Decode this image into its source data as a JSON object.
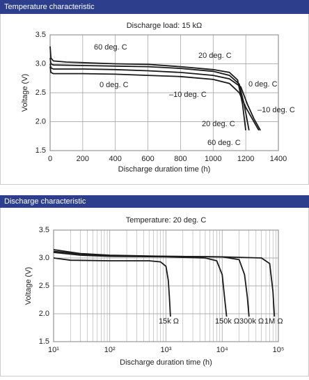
{
  "chart_data": [
    {
      "type": "line",
      "title": "Temperature characteristic",
      "subtitle": "Discharge load: 15 kΩ",
      "x_label": "Discharge duration time (h)",
      "y_label": "Voltage (V)",
      "xlim": [
        0,
        1400
      ],
      "xticks": [
        0,
        200,
        400,
        600,
        800,
        1000,
        1200,
        1400
      ],
      "ylim": [
        1.5,
        3.5
      ],
      "yticks": [
        1.5,
        {
          "value": 2,
          "label": "2.0"
        },
        2.5,
        {
          "value": 3,
          "label": "3.0"
        },
        3.5
      ],
      "grid": true,
      "log_x": false,
      "series": [
        {
          "name": "60 deg. C",
          "color": "#1a1a1a",
          "x": [
            0,
            5,
            20,
            100,
            200,
            400,
            600,
            800,
            1000,
            1100,
            1150,
            1180,
            1200
          ],
          "values": [
            3.3,
            3.1,
            3.05,
            3.03,
            3.02,
            3.0,
            2.99,
            2.95,
            2.9,
            2.85,
            2.72,
            2.3,
            1.85
          ]
        },
        {
          "name": "20 deg. C",
          "color": "#1a1a1a",
          "x": [
            0,
            5,
            20,
            200,
            400,
            600,
            800,
            1000,
            1100,
            1160,
            1190,
            1210,
            1220
          ],
          "values": [
            3.1,
            3.0,
            2.98,
            2.97,
            2.96,
            2.95,
            2.92,
            2.87,
            2.8,
            2.65,
            2.3,
            2.0,
            1.85
          ]
        },
        {
          "name": "0 deg. C",
          "color": "#1a1a1a",
          "x": [
            0,
            5,
            20,
            200,
            400,
            600,
            800,
            1000,
            1100,
            1170,
            1210,
            1250,
            1290
          ],
          "values": [
            3.0,
            2.93,
            2.91,
            2.91,
            2.9,
            2.88,
            2.85,
            2.8,
            2.74,
            2.6,
            2.3,
            2.05,
            1.85
          ]
        },
        {
          "name": "–10 deg. C",
          "color": "#1a1a1a",
          "x": [
            0,
            5,
            20,
            200,
            400,
            600,
            800,
            1000,
            1100,
            1160,
            1200,
            1240,
            1280
          ],
          "values": [
            2.95,
            2.85,
            2.83,
            2.83,
            2.82,
            2.8,
            2.78,
            2.73,
            2.66,
            2.5,
            2.25,
            2.05,
            1.85
          ]
        }
      ]
    },
    {
      "type": "line",
      "title": "Discharge characteristic",
      "subtitle": "Temperature: 20 deg. C",
      "x_label": "Discharge duration time (h)",
      "y_label": "Voltage (V)",
      "xlim": [
        10,
        100000
      ],
      "xticks": [
        {
          "value": 10,
          "label": "10¹"
        },
        {
          "value": 100,
          "label": "10²"
        },
        {
          "value": 1000,
          "label": "10³"
        },
        {
          "value": 10000,
          "label": "10⁴"
        },
        {
          "value": 100000,
          "label": "10⁵"
        }
      ],
      "ylim": [
        1.5,
        3.5
      ],
      "yticks": [
        1.5,
        {
          "value": 2,
          "label": "2.0"
        },
        2.5,
        {
          "value": 3,
          "label": "3.0"
        },
        3.5
      ],
      "grid": true,
      "log_x": true,
      "series": [
        {
          "name": "15k Ω",
          "color": "#1a1a1a",
          "x": [
            10,
            20,
            100,
            500,
            800,
            1000,
            1100,
            1150,
            1200
          ],
          "values": [
            3.0,
            2.96,
            2.95,
            2.95,
            2.93,
            2.85,
            2.6,
            2.3,
            1.95
          ]
        },
        {
          "name": "150k Ω",
          "color": "#1a1a1a",
          "x": [
            10,
            30,
            100,
            1000,
            5000,
            8000,
            10000,
            11000,
            12000
          ],
          "values": [
            3.1,
            3.05,
            3.03,
            3.02,
            3.0,
            2.95,
            2.7,
            2.3,
            1.95
          ]
        },
        {
          "name": "300k Ω",
          "color": "#1a1a1a",
          "x": [
            10,
            30,
            100,
            1000,
            10000,
            20000,
            25000,
            28000,
            30000
          ],
          "values": [
            3.12,
            3.07,
            3.04,
            3.03,
            3.02,
            2.97,
            2.7,
            2.3,
            1.95
          ]
        },
        {
          "name": "1M Ω",
          "color": "#1a1a1a",
          "x": [
            10,
            30,
            100,
            1000,
            10000,
            50000,
            70000,
            80000,
            85000
          ],
          "values": [
            3.15,
            3.08,
            3.05,
            3.03,
            3.02,
            3.0,
            2.9,
            2.4,
            1.95
          ]
        }
      ]
    }
  ]
}
